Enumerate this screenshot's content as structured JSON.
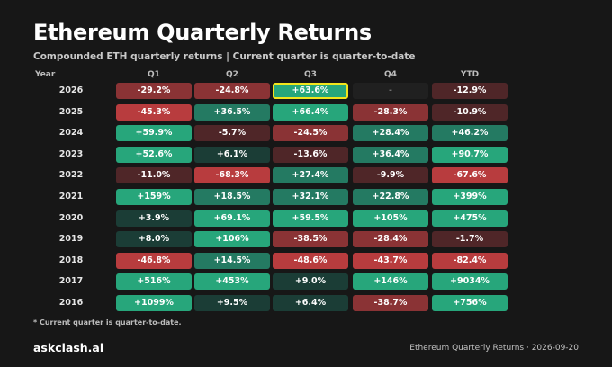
{
  "header": {
    "title": "Ethereum Quarterly Returns",
    "subtitle": "Compounded ETH quarterly returns | Current quarter is quarter-to-date"
  },
  "footnote": "* Current quarter is quarter-to-date.",
  "footer": {
    "brand": "askclash.ai",
    "caption": "Ethereum Quarterly Returns · 2026-09-20"
  },
  "colors": {
    "strong_negative": "#b83c3e",
    "negative": "#8a3335",
    "weak_negative": "#4f2628",
    "empty": "#202020",
    "weak_positive": "#1b3d36",
    "positive": "#247a62",
    "strong_positive": "#27a67b",
    "highlight_border": "#f2e51b"
  },
  "chart_data": {
    "type": "table",
    "columns": [
      "Year",
      "Q1",
      "Q2",
      "Q3",
      "Q4",
      "YTD"
    ],
    "highlight": {
      "row": "2026",
      "column": "Q3"
    },
    "rows": [
      {
        "year": "2026",
        "values": [
          "-29.2%",
          "-24.8%",
          "+63.6%",
          "-",
          "-12.9%"
        ],
        "numeric": [
          -29.2,
          -24.8,
          63.6,
          null,
          -12.9
        ]
      },
      {
        "year": "2025",
        "values": [
          "-45.3%",
          "+36.5%",
          "+66.4%",
          "-28.3%",
          "-10.9%"
        ],
        "numeric": [
          -45.3,
          36.5,
          66.4,
          -28.3,
          -10.9
        ]
      },
      {
        "year": "2024",
        "values": [
          "+59.9%",
          "-5.7%",
          "-24.5%",
          "+28.4%",
          "+46.2%"
        ],
        "numeric": [
          59.9,
          -5.7,
          -24.5,
          28.4,
          46.2
        ]
      },
      {
        "year": "2023",
        "values": [
          "+52.6%",
          "+6.1%",
          "-13.6%",
          "+36.4%",
          "+90.7%"
        ],
        "numeric": [
          52.6,
          6.1,
          -13.6,
          36.4,
          90.7
        ]
      },
      {
        "year": "2022",
        "values": [
          "-11.0%",
          "-68.3%",
          "+27.4%",
          "-9.9%",
          "-67.6%"
        ],
        "numeric": [
          -11.0,
          -68.3,
          27.4,
          -9.9,
          -67.6
        ]
      },
      {
        "year": "2021",
        "values": [
          "+159%",
          "+18.5%",
          "+32.1%",
          "+22.8%",
          "+399%"
        ],
        "numeric": [
          159,
          18.5,
          32.1,
          22.8,
          399
        ]
      },
      {
        "year": "2020",
        "values": [
          "+3.9%",
          "+69.1%",
          "+59.5%",
          "+105%",
          "+475%"
        ],
        "numeric": [
          3.9,
          69.1,
          59.5,
          105,
          475
        ]
      },
      {
        "year": "2019",
        "values": [
          "+8.0%",
          "+106%",
          "-38.5%",
          "-28.4%",
          "-1.7%"
        ],
        "numeric": [
          8.0,
          106,
          -38.5,
          -28.4,
          -1.7
        ]
      },
      {
        "year": "2018",
        "values": [
          "-46.8%",
          "+14.5%",
          "-48.6%",
          "-43.7%",
          "-82.4%"
        ],
        "numeric": [
          -46.8,
          14.5,
          -48.6,
          -43.7,
          -82.4
        ]
      },
      {
        "year": "2017",
        "values": [
          "+516%",
          "+453%",
          "+9.0%",
          "+146%",
          "+9034%"
        ],
        "numeric": [
          516,
          453,
          9.0,
          146,
          9034
        ]
      },
      {
        "year": "2016",
        "values": [
          "+1099%",
          "+9.5%",
          "+6.4%",
          "-38.7%",
          "+756%"
        ],
        "numeric": [
          1099,
          9.5,
          6.4,
          -38.7,
          756
        ]
      }
    ]
  }
}
